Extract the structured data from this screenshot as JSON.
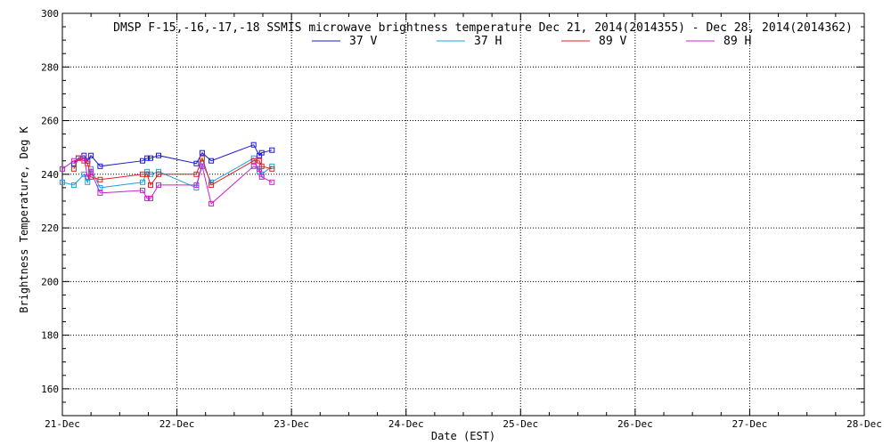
{
  "chart_data": {
    "type": "line",
    "title": "DMSP F-15,-16,-17,-18 SSMIS microwave brightness temperature Dec 21, 2014(2014355) - Dec 28, 2014(2014362)",
    "xlabel": "Date (EST)",
    "ylabel": "Brightness Temperature, Deg K",
    "x_tick_labels": [
      "21-Dec",
      "22-Dec",
      "23-Dec",
      "24-Dec",
      "25-Dec",
      "26-Dec",
      "27-Dec",
      "28-Dec"
    ],
    "x_unit_note": "x values are fractional days elapsed since the 21-Dec tick",
    "xlim": [
      0,
      7
    ],
    "y_ticks": [
      160,
      180,
      200,
      220,
      240,
      260,
      280,
      300
    ],
    "ylim": [
      150,
      300
    ],
    "grid": true,
    "legend_position": "top-center",
    "series": [
      {
        "name": "37 V",
        "color": "#1a1acc",
        "x": [
          0.1,
          0.14,
          0.19,
          0.22,
          0.25,
          0.33,
          0.7,
          0.74,
          0.77,
          0.84,
          1.17,
          1.22,
          1.3,
          1.67,
          1.72,
          1.74,
          1.83
        ],
        "y": [
          244,
          246,
          247,
          245,
          247,
          243,
          245,
          246,
          246,
          247,
          244,
          248,
          245,
          251,
          247,
          248,
          249
        ]
      },
      {
        "name": "37 H",
        "color": "#1ea0dc",
        "x": [
          0.0,
          0.1,
          0.19,
          0.22,
          0.25,
          0.33,
          0.7,
          0.74,
          0.77,
          0.84,
          1.17,
          1.22,
          1.3,
          1.67,
          1.72,
          1.74,
          1.83
        ],
        "y": [
          237,
          236,
          240,
          237,
          242,
          235,
          237,
          241,
          240,
          241,
          235,
          244,
          237,
          246,
          241,
          240,
          243
        ]
      },
      {
        "name": "89 V",
        "color": "#e02020",
        "x": [
          0.1,
          0.14,
          0.19,
          0.22,
          0.25,
          0.33,
          0.7,
          0.74,
          0.77,
          0.84,
          1.17,
          1.22,
          1.3,
          1.67,
          1.72,
          1.74,
          1.83
        ],
        "y": [
          242,
          246,
          245,
          244,
          239,
          238,
          240,
          240,
          236,
          240,
          240,
          246,
          236,
          245,
          245,
          243,
          242
        ]
      },
      {
        "name": "89 H",
        "color": "#cc20cc",
        "x": [
          0.0,
          0.1,
          0.19,
          0.22,
          0.25,
          0.33,
          0.7,
          0.74,
          0.77,
          0.84,
          1.17,
          1.22,
          1.3,
          1.67,
          1.72,
          1.74,
          1.83
        ],
        "y": [
          242,
          245,
          246,
          239,
          241,
          233,
          234,
          231,
          231,
          236,
          236,
          243,
          229,
          243,
          242,
          239,
          237
        ]
      }
    ]
  }
}
